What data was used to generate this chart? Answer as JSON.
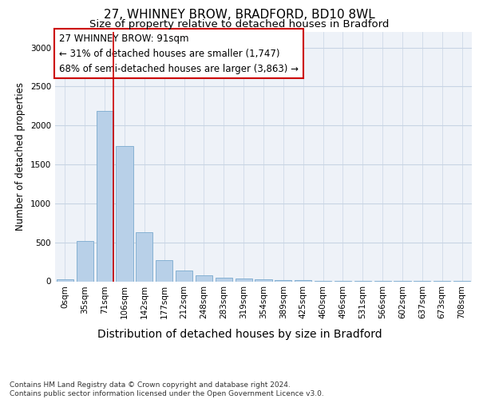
{
  "title1": "27, WHINNEY BROW, BRADFORD, BD10 8WL",
  "title2": "Size of property relative to detached houses in Bradford",
  "xlabel": "Distribution of detached houses by size in Bradford",
  "ylabel": "Number of detached properties",
  "categories": [
    "0sqm",
    "35sqm",
    "71sqm",
    "106sqm",
    "142sqm",
    "177sqm",
    "212sqm",
    "248sqm",
    "283sqm",
    "319sqm",
    "354sqm",
    "389sqm",
    "425sqm",
    "460sqm",
    "496sqm",
    "531sqm",
    "566sqm",
    "602sqm",
    "637sqm",
    "673sqm",
    "708sqm"
  ],
  "values": [
    28,
    520,
    2190,
    1740,
    630,
    268,
    140,
    80,
    50,
    40,
    25,
    18,
    12,
    8,
    5,
    3,
    2,
    2,
    1,
    1,
    1
  ],
  "bar_color": "#b8d0e8",
  "bar_edge_color": "#7aaace",
  "grid_color": "#c8d4e4",
  "background_color": "#eef2f8",
  "annotation_text": "27 WHINNEY BROW: 91sqm\n← 31% of detached houses are smaller (1,747)\n68% of semi-detached houses are larger (3,863) →",
  "box_color": "#ffffff",
  "box_edge_color": "#cc0000",
  "vline_color": "#cc0000",
  "vline_x": 2.43,
  "ylim": [
    0,
    3200
  ],
  "yticks": [
    0,
    500,
    1000,
    1500,
    2000,
    2500,
    3000
  ],
  "footnote": "Contains HM Land Registry data © Crown copyright and database right 2024.\nContains public sector information licensed under the Open Government Licence v3.0.",
  "title1_fontsize": 11,
  "title2_fontsize": 9.5,
  "xlabel_fontsize": 10,
  "ylabel_fontsize": 8.5,
  "tick_fontsize": 7.5,
  "annot_fontsize": 8.5,
  "footnote_fontsize": 6.5
}
